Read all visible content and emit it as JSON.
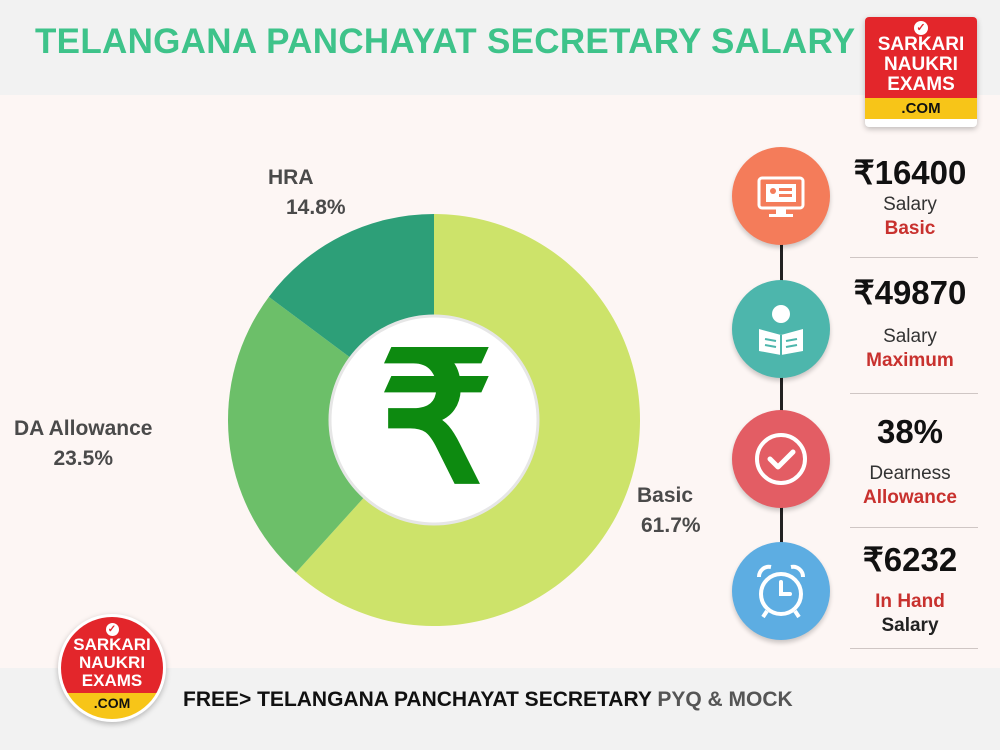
{
  "header": {
    "title": "TELANGANA PANCHAYAT SECRETARY SALARY"
  },
  "logo": {
    "line1": "SARKARI",
    "line2": "NAUKRI",
    "line3": "EXAMS",
    "line4": ".COM",
    "check": "✓"
  },
  "chart_data": {
    "type": "pie",
    "style": "donut",
    "slices": [
      {
        "label": "Basic",
        "value": 61.7,
        "value_label": "61.7%",
        "color": "#cde36a"
      },
      {
        "label": "DA Allowance",
        "value": 23.5,
        "value_label": "23.5%",
        "color": "#6cbf69"
      },
      {
        "label": "HRA",
        "value": 14.8,
        "value_label": "14.8%",
        "color": "#2d9f78"
      }
    ],
    "center_symbol": "₹"
  },
  "timeline": [
    {
      "value": "₹16400",
      "line1": "Salary",
      "line2": "Basic",
      "color": "#f47c5a",
      "icon": "id-card-monitor-icon"
    },
    {
      "value": "₹49870",
      "line1": "Salary",
      "line2": "Maximum",
      "color": "#4db6ac",
      "icon": "reading-person-icon"
    },
    {
      "value": "38%",
      "line1": "Dearness",
      "line2": "Allowance",
      "color": "#e35d64",
      "icon": "checkmark-badge-icon"
    },
    {
      "value": "₹6232",
      "line1": "In Hand",
      "line2": "Salary",
      "color": "#5dade2",
      "icon": "alarm-clock-icon"
    }
  ],
  "footer": {
    "prefix": "FREE> TELANGANA PANCHAYAT SECRETARY",
    "suffix": " PYQ & MOCK"
  }
}
